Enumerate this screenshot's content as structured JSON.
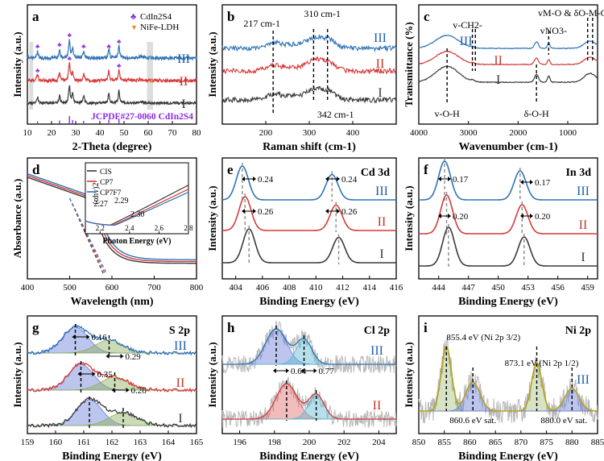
{
  "colors": {
    "I": "#3a3a3a",
    "II": "#d63a3a",
    "III": "#2f73b8",
    "blue_label": "#1f5faa",
    "red_label": "#c0392b",
    "black_label": "#333333",
    "peak_green": "#8db05a",
    "peak_blue": "#6b7fd8",
    "peak_cyan": "#5ab8d0",
    "peak_orange": "#e8b070",
    "peak_red_fill": "#e06a6a",
    "noise": "#b8b8b8",
    "legend_purple": "#8a2be2",
    "legend_orange": "#e88a1a"
  },
  "chart_data": [
    {
      "panel": "a",
      "type": "line",
      "xlabel": "2-Theta (degree)",
      "ylabel": "Intensity (a.u.)",
      "xlim": [
        10,
        80
      ],
      "xticks": [
        "10",
        "20",
        "30",
        "40",
        "50",
        "60",
        "70",
        "80"
      ],
      "series_labels": [
        "III",
        "II",
        "I"
      ],
      "legend": [
        "CdIn2S4",
        "NiFe-LDH"
      ],
      "annotation": "JCPDF#27-0060 CdIn2S4",
      "peaks_2theta": [
        14.2,
        23.3,
        27.4,
        28.7,
        33.3,
        43.7,
        47.9
      ]
    },
    {
      "panel": "b",
      "type": "line",
      "xlabel": "Raman shift (cm-1)",
      "ylabel": "Intensity (a.u.)",
      "xlim": [
        100,
        500
      ],
      "xticks": [
        "200",
        "300",
        "400"
      ],
      "series_labels": [
        "III",
        "II",
        "I"
      ],
      "peak_labels": [
        "217 cm-1",
        "310 cm-1",
        "342 cm-1"
      ],
      "peaks": [
        217,
        310,
        342
      ]
    },
    {
      "panel": "c",
      "type": "line",
      "xlabel": "Wavenumber (cm-1)",
      "ylabel": "Transmittance (%)",
      "xlim": [
        4000,
        400
      ],
      "xticks": [
        "4000",
        "3000",
        "2000",
        "1000"
      ],
      "series_labels": [
        "III",
        "II",
        "I"
      ],
      "band_labels": [
        "v-O-H",
        "v-CH2-",
        "vNO3-",
        "vM-O & δO-M-O",
        "δ-O-H"
      ],
      "bands": [
        3430,
        2920,
        1384,
        600,
        1630
      ]
    },
    {
      "panel": "d",
      "type": "line",
      "xlabel": "Wavelength (nm)",
      "ylabel": "Absorbance (a.u.)",
      "xlim": [
        400,
        800
      ],
      "xticks": [
        "400",
        "500",
        "600",
        "700",
        "800"
      ],
      "legend": [
        "CIS",
        "CP7",
        "CP7F7"
      ],
      "inset": {
        "xlabel": "Photon Energy (eV)",
        "ylabel": "(αhv)2",
        "xticks": [
          "2.2",
          "2.4",
          "2.6",
          "2.8"
        ],
        "bandgaps": [
          "2.27",
          "2.29",
          "2.30"
        ],
        "bandgap_values": [
          2.27,
          2.29,
          2.3
        ]
      }
    },
    {
      "panel": "e",
      "type": "line",
      "title": "Cd 3d",
      "xlabel": "Binding Energy (eV)",
      "ylabel": "Intensity (a.u.)",
      "xlim": [
        403,
        416
      ],
      "xticks": [
        "404",
        "406",
        "408",
        "410",
        "412",
        "414",
        "416"
      ],
      "series_labels": [
        "III",
        "II",
        "I"
      ],
      "shifts": [
        "0.24",
        "0.26",
        "0.24",
        "0.26"
      ],
      "peaks_I": [
        405.0,
        411.7
      ],
      "peaks_II": [
        404.7,
        411.5
      ],
      "peaks_III": [
        404.5,
        411.2
      ]
    },
    {
      "panel": "f",
      "type": "line",
      "title": "In 3d",
      "xlabel": "Binding Energy (eV)",
      "ylabel": "Intensity (a.u.)",
      "xlim": [
        442,
        460
      ],
      "xticks": [
        "444",
        "447",
        "450",
        "453",
        "456",
        "459"
      ],
      "series_labels": [
        "III",
        "II",
        "I"
      ],
      "shifts": [
        "0.17",
        "0.20",
        "0.17",
        "0.20"
      ],
      "peaks_I": [
        445.0,
        452.6
      ],
      "peaks_II": [
        444.8,
        452.4
      ],
      "peaks_III": [
        444.6,
        452.2
      ]
    },
    {
      "panel": "g",
      "type": "line",
      "title": "S 2p",
      "xlabel": "Binding Energy (eV)",
      "ylabel": "Intensity (a.u.)",
      "xlim": [
        159,
        165
      ],
      "xticks": [
        "159",
        "160",
        "161",
        "162",
        "163",
        "164",
        "165"
      ],
      "series_labels": [
        "III",
        "II",
        "I"
      ],
      "shifts": [
        "0.16",
        "0.29",
        "0.35",
        "0.26"
      ],
      "peaks_I": [
        161.2,
        162.4
      ],
      "peaks_II": [
        160.9,
        162.1
      ],
      "peaks_III": [
        160.7,
        161.9
      ]
    },
    {
      "panel": "h",
      "type": "line",
      "title": "Cl 2p",
      "xlabel": "Binding Energy (eV)",
      "ylabel": "Intensity (a.u.)",
      "xlim": [
        195,
        205
      ],
      "xticks": [
        "196",
        "198",
        "200",
        "202",
        "204"
      ],
      "series_labels": [
        "III",
        "II"
      ],
      "shifts": [
        "0.64",
        "0.77"
      ],
      "peaks_II": [
        198.7,
        200.4
      ],
      "peaks_III": [
        198.1,
        199.7
      ]
    },
    {
      "panel": "i",
      "type": "line",
      "title": "Ni 2p",
      "xlabel": "Binding Energy (eV)",
      "ylabel": "Intensity (a.u.)",
      "xlim": [
        850,
        885
      ],
      "xticks": [
        "850",
        "855",
        "860",
        "865",
        "870",
        "875",
        "880",
        "885"
      ],
      "series_labels": [
        "III"
      ],
      "peak_labels": [
        "855.4 eV (Ni 2p 3/2)",
        "873.1 eV (Ni 2p 1/2)",
        "860.6 eV sat.",
        "880.0 eV sat."
      ],
      "peaks": [
        855.4,
        860.6,
        873.1,
        880.0
      ]
    }
  ]
}
